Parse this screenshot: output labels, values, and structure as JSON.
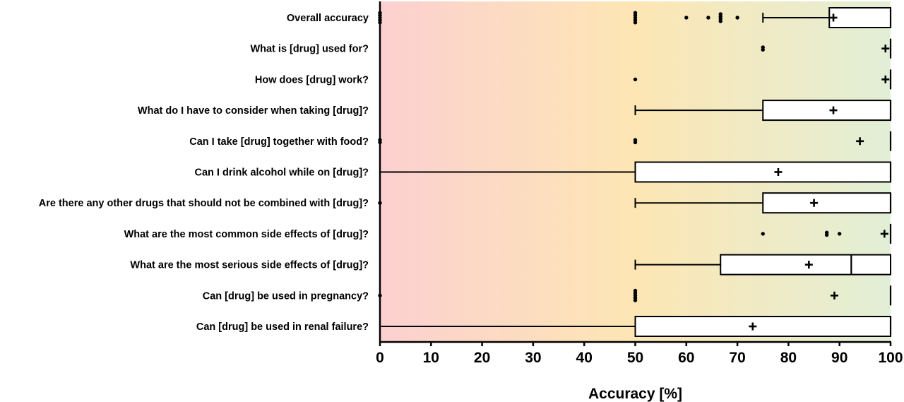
{
  "chart_data": {
    "type": "boxplot",
    "orientation": "horizontal",
    "xlabel": "Accuracy [%]",
    "xlim": [
      0,
      100
    ],
    "xticks": [
      "0",
      "10",
      "20",
      "30",
      "40",
      "50",
      "60",
      "70",
      "80",
      "90",
      "100"
    ],
    "background_gradient": [
      "#fcd0d0",
      "#fde6b4",
      "#e2efd6"
    ],
    "categories": [
      {
        "label": "Overall accuracy",
        "q1": 88,
        "median": 100,
        "q3": 100,
        "whisker_low": 75,
        "whisker_high": 100,
        "mean": 88.8,
        "outliers": [
          0,
          0,
          0,
          0,
          0,
          50,
          50,
          50,
          50,
          50,
          60,
          64.3,
          66.7,
          66.7,
          66.7,
          66.7,
          70
        ]
      },
      {
        "label": "What is [drug] used for?",
        "q1": 100,
        "median": 100,
        "q3": 100,
        "whisker_low": 100,
        "whisker_high": 100,
        "mean": 99,
        "outliers": [
          75,
          75
        ]
      },
      {
        "label": "How does [drug] work?",
        "q1": 100,
        "median": 100,
        "q3": 100,
        "whisker_low": 100,
        "whisker_high": 100,
        "mean": 99,
        "outliers": [
          50
        ]
      },
      {
        "label": "What do I have to consider when taking [drug]?",
        "q1": 75,
        "median": 100,
        "q3": 100,
        "whisker_low": 50,
        "whisker_high": 100,
        "mean": 88.8,
        "outliers": []
      },
      {
        "label": "Can I take [drug] together with food?",
        "q1": 100,
        "median": 100,
        "q3": 100,
        "whisker_low": 100,
        "whisker_high": 100,
        "mean": 94,
        "outliers": [
          0,
          0,
          50,
          50
        ]
      },
      {
        "label": "Can I drink alcohol while on [drug]?",
        "q1": 50,
        "median": 100,
        "q3": 100,
        "whisker_low": 0,
        "whisker_high": 100,
        "mean": 78,
        "outliers": []
      },
      {
        "label": "Are there any other drugs that should not be combined with [drug]?",
        "q1": 75,
        "median": 100,
        "q3": 100,
        "whisker_low": 50,
        "whisker_high": 100,
        "mean": 85,
        "outliers": [
          0
        ]
      },
      {
        "label": "What are the most common side effects of [drug]?",
        "q1": 100,
        "median": 100,
        "q3": 100,
        "whisker_low": 100,
        "whisker_high": 100,
        "mean": 98.8,
        "outliers": [
          75,
          87.5,
          87.5,
          90
        ]
      },
      {
        "label": "What are the most serious side effects of [drug]?",
        "q1": 66.7,
        "median": 92.3,
        "q3": 100,
        "whisker_low": 50,
        "whisker_high": 100,
        "mean": 84,
        "outliers": []
      },
      {
        "label": "Can [drug] be used in pregnancy?",
        "q1": 100,
        "median": 100,
        "q3": 100,
        "whisker_low": 100,
        "whisker_high": 100,
        "mean": 89,
        "outliers": [
          0,
          50,
          50,
          50,
          50,
          50
        ]
      },
      {
        "label": "Can [drug] be used in renal failure?",
        "q1": 50,
        "median": 100,
        "q3": 100,
        "whisker_low": 0,
        "whisker_high": 100,
        "mean": 73,
        "outliers": []
      }
    ]
  }
}
